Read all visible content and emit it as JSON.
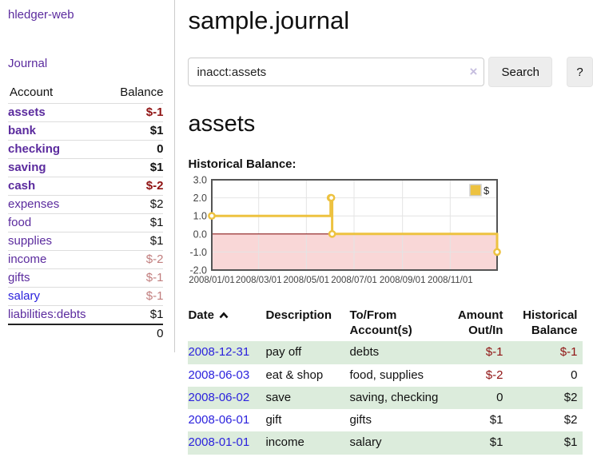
{
  "app": {
    "title": "hledger-web",
    "nav_journal": "Journal"
  },
  "colors": {
    "link_purple": "#5b2b9e",
    "link_blue": "#2b22dd",
    "negative_strong": "#8f1212",
    "negative_muted": "#c17d7d",
    "row_stripe_green": "#dcecdc",
    "chart_series_yellow": "#edc240",
    "chart_negative_region": "#f9d7d7",
    "chart_zero_line": "#8b1a1a"
  },
  "sidebar": {
    "table": {
      "col_account": "Account",
      "col_balance": "Balance"
    },
    "accounts": [
      {
        "name": "assets",
        "indent": 1,
        "bold": true,
        "color": "purple",
        "balance": "$-1",
        "balance_style": "neg-strong"
      },
      {
        "name": "bank",
        "indent": 2,
        "bold": true,
        "color": "purple",
        "balance": "$1",
        "balance_style": ""
      },
      {
        "name": "checking",
        "indent": 3,
        "bold": true,
        "color": "purple",
        "balance": "0",
        "balance_style": ""
      },
      {
        "name": "saving",
        "indent": 3,
        "bold": true,
        "color": "purple",
        "balance": "$1",
        "balance_style": ""
      },
      {
        "name": "cash",
        "indent": 2,
        "bold": true,
        "color": "purple",
        "balance": "$-2",
        "balance_style": "neg-strong"
      },
      {
        "name": "expenses",
        "indent": 1,
        "bold": false,
        "color": "purple",
        "balance": "$2",
        "balance_style": ""
      },
      {
        "name": "food",
        "indent": 2,
        "bold": false,
        "color": "purple",
        "balance": "$1",
        "balance_style": ""
      },
      {
        "name": "supplies",
        "indent": 2,
        "bold": false,
        "color": "purple",
        "balance": "$1",
        "balance_style": ""
      },
      {
        "name": "income",
        "indent": 1,
        "bold": false,
        "color": "purple",
        "balance": "$-2",
        "balance_style": "neg-muted"
      },
      {
        "name": "gifts",
        "indent": 2,
        "bold": false,
        "color": "purple",
        "balance": "$-1",
        "balance_style": "neg-muted"
      },
      {
        "name": "salary",
        "indent": 2,
        "bold": false,
        "color": "blue",
        "balance": "$-1",
        "balance_style": "neg-muted"
      },
      {
        "name": "liabilities:debts",
        "indent": 1,
        "bold": false,
        "color": "purple",
        "balance": "$1",
        "balance_style": ""
      }
    ],
    "total": "0"
  },
  "header": {
    "title": "sample.journal"
  },
  "search": {
    "query": "inacct:assets",
    "clear_icon": "×",
    "button": "Search",
    "help_button": "?"
  },
  "account_page": {
    "heading": "assets",
    "chart_label": "Historical Balance:"
  },
  "chart_data": {
    "type": "line",
    "title": "Historical Balance",
    "step": true,
    "x_range": [
      "2008-01-01",
      "2008-12-31"
    ],
    "ylim": [
      -2.0,
      3.0
    ],
    "yticks": [
      "3.0",
      "2.0",
      "1.0",
      "0.0",
      "-1.0",
      "-2.0"
    ],
    "xticks": [
      "2008/01/01",
      "2008/03/01",
      "2008/05/01",
      "2008/07/01",
      "2008/09/01",
      "2008/11/01"
    ],
    "grid": true,
    "legend_position": "top-right",
    "series": [
      {
        "name": "$",
        "color": "#edc240",
        "points": [
          {
            "date": "2008-01-01",
            "value": 1.0
          },
          {
            "date": "2008-06-01",
            "value": 2.0
          },
          {
            "date": "2008-06-02",
            "value": 2.0
          },
          {
            "date": "2008-06-03",
            "value": 0.0
          },
          {
            "date": "2008-12-31",
            "value": -1.0
          }
        ]
      }
    ],
    "negative_region_color": "#f9d7d7",
    "zero_line_color": "#8b1a1a"
  },
  "register": {
    "columns": [
      {
        "label": "Date",
        "sorted": "ascending"
      },
      {
        "label": "Description"
      },
      {
        "label": "To/From Account(s)"
      },
      {
        "label": "Amount Out/In"
      },
      {
        "label": "Historical Balance"
      }
    ],
    "rows": [
      {
        "date": "2008-12-31",
        "description": "pay off",
        "accounts": "debts",
        "amount": "$-1",
        "amount_negative": true,
        "balance": "$-1",
        "balance_negative": true
      },
      {
        "date": "2008-06-03",
        "description": "eat & shop",
        "accounts": "food, supplies",
        "amount": "$-2",
        "amount_negative": true,
        "balance": "0",
        "balance_negative": false
      },
      {
        "date": "2008-06-02",
        "description": "save",
        "accounts": "saving, checking",
        "amount": "0",
        "amount_negative": false,
        "balance": "$2",
        "balance_negative": false
      },
      {
        "date": "2008-06-01",
        "description": "gift",
        "accounts": "gifts",
        "amount": "$1",
        "amount_negative": false,
        "balance": "$2",
        "balance_negative": false
      },
      {
        "date": "2008-01-01",
        "description": "income",
        "accounts": "salary",
        "amount": "$1",
        "amount_negative": false,
        "balance": "$1",
        "balance_negative": false
      }
    ]
  }
}
